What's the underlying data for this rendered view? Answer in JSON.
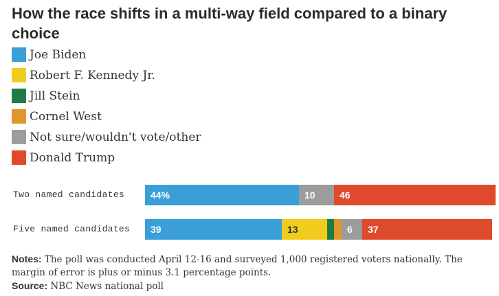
{
  "title": "How the race shifts in a multi-way field compared to a binary choice",
  "colors": {
    "biden": "#3a9fd6",
    "kennedy": "#f2cc1d",
    "stein": "#1f7a46",
    "west": "#e0962a",
    "other": "#9c9c9c",
    "trump": "#e04a2c"
  },
  "legend": [
    {
      "label": "Joe Biden",
      "key": "biden"
    },
    {
      "label": "Robert F. Kennedy Jr.",
      "key": "kennedy"
    },
    {
      "label": "Jill Stein",
      "key": "stein"
    },
    {
      "label": "Cornel West",
      "key": "west"
    },
    {
      "label": "Not sure/wouldn't vote/other",
      "key": "other"
    },
    {
      "label": "Donald Trump",
      "key": "trump"
    }
  ],
  "chart_data": {
    "type": "bar",
    "stacked": true,
    "orientation": "horizontal",
    "categories": [
      "Two named candidates",
      "Five named candidates"
    ],
    "series": [
      {
        "name": "Joe Biden",
        "key": "biden",
        "values": [
          44,
          39
        ],
        "labels": [
          "44%",
          "39"
        ]
      },
      {
        "name": "Robert F. Kennedy Jr.",
        "key": "kennedy",
        "values": [
          0,
          13
        ],
        "labels": [
          "",
          "13"
        ]
      },
      {
        "name": "Jill Stein",
        "key": "stein",
        "values": [
          0,
          2
        ],
        "labels": [
          "",
          ""
        ]
      },
      {
        "name": "Cornel West",
        "key": "west",
        "values": [
          0,
          2
        ],
        "labels": [
          "",
          ""
        ]
      },
      {
        "name": "Not sure/wouldn't vote/other",
        "key": "other",
        "values": [
          10,
          6
        ],
        "labels": [
          "10",
          "6"
        ]
      },
      {
        "name": "Donald Trump",
        "key": "trump",
        "values": [
          46,
          37
        ],
        "labels": [
          "46",
          "37"
        ]
      }
    ],
    "label_colors": {
      "biden": "#ffffff",
      "kennedy": "#333333",
      "other": "#ffffff",
      "trump": "#ffffff"
    },
    "xlim": [
      0,
      99
    ],
    "legend_position": "top-left"
  },
  "notes": {
    "label": "Notes:",
    "text": " The poll was conducted April 12-16 and surveyed 1,000 registered voters nationally. The margin of error is plus or minus 3.1 percentage points.",
    "source_label": "Source:",
    "source_text": " NBC News national poll"
  }
}
